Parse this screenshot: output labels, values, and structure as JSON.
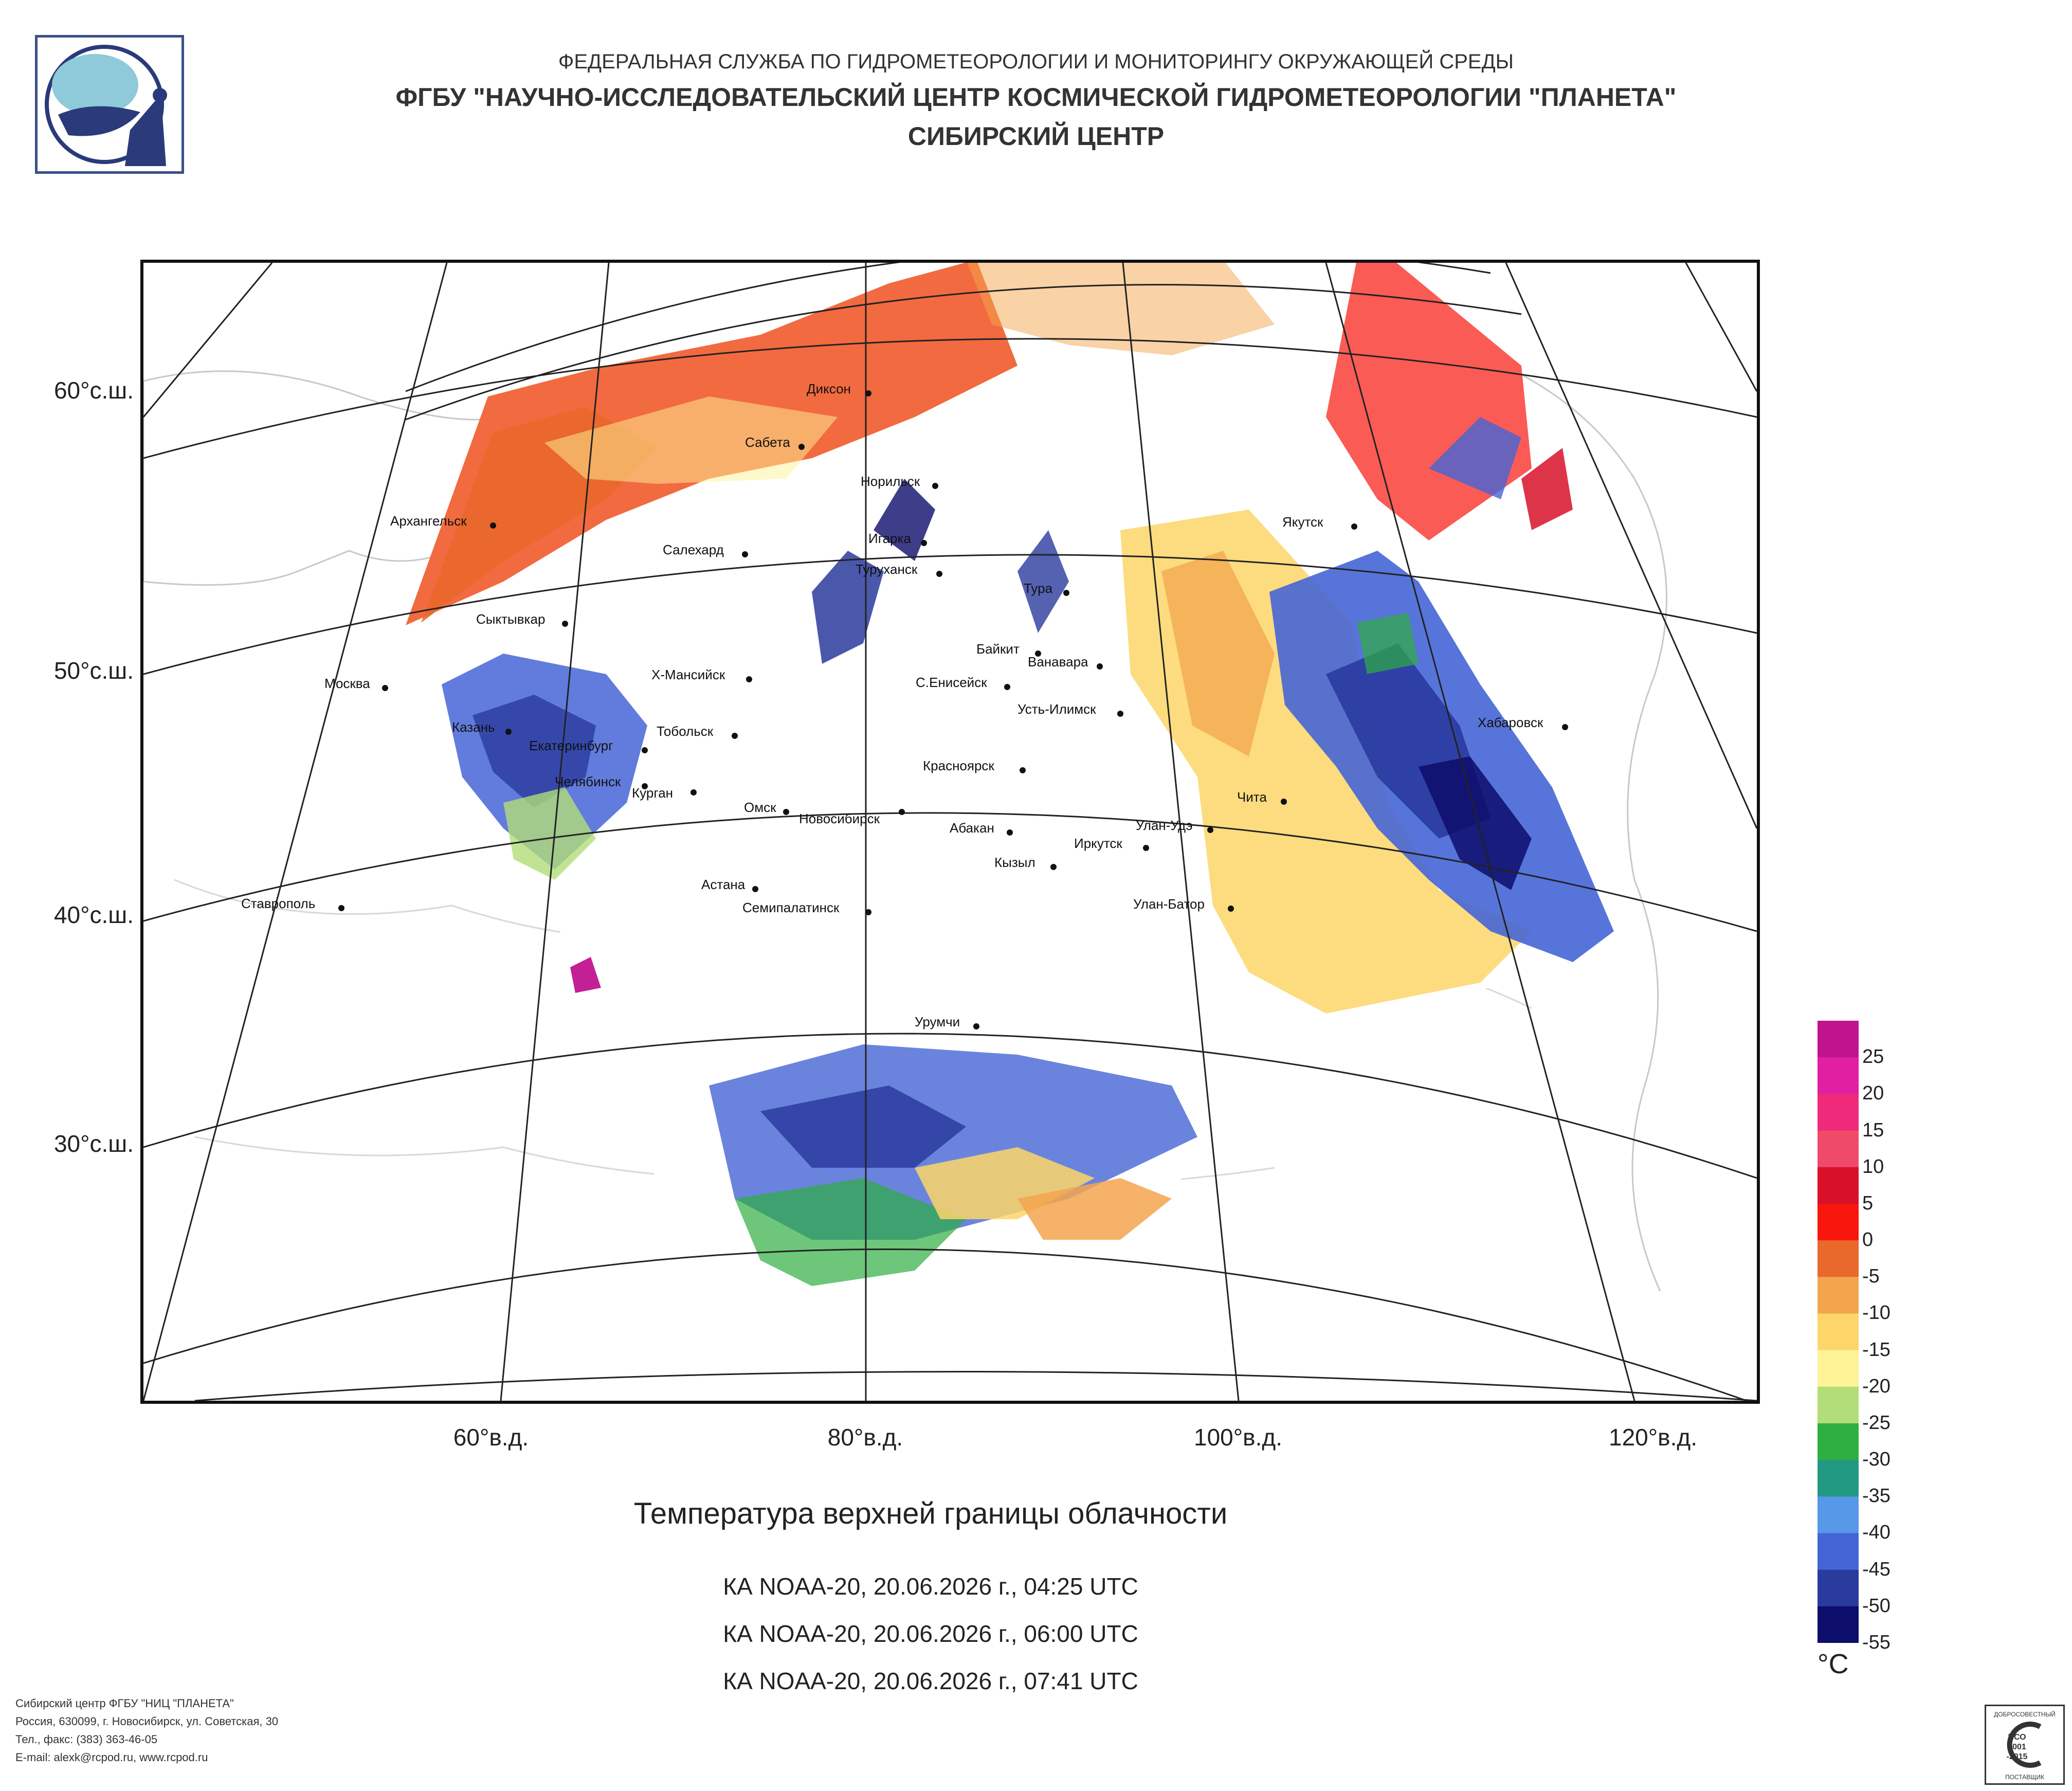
{
  "header": {
    "line1": "ФЕДЕРАЛЬНАЯ СЛУЖБА ПО ГИДРОМЕТЕОРОЛОГИИ И МОНИТОРИНГУ ОКРУЖАЮЩЕЙ СРЕДЫ",
    "line2": "ФГБУ \"НАУЧНО-ИССЛЕДОВАТЕЛЬСКИЙ ЦЕНТР КОСМИЧЕСКОЙ ГИДРОМЕТЕОРОЛОГИИ \"ПЛАНЕТА\"",
    "line3": "СИБИРСКИЙ ЦЕНТР"
  },
  "map": {
    "latitude_labels": [
      "60°с.ш.",
      "50°с.ш.",
      "40°с.ш.",
      "30°с.ш."
    ],
    "longitude_labels": [
      "60°в.д.",
      "80°в.д.",
      "100°в.д.",
      "120°в.д."
    ],
    "cities": [
      "Диксон",
      "Сабета",
      "Норильск",
      "Архангельск",
      "Салехард",
      "Игарка",
      "Туруханск",
      "Якутск",
      "Тура",
      "Сыктывкар",
      "Байкит",
      "Ванавара",
      "Москва",
      "Х-Мансийск",
      "С.Енисейск",
      "Усть-Илимск",
      "Хабаровск",
      "Казань",
      "Тобольск",
      "Екатеринбург",
      "Красноярск",
      "Челябинск",
      "Курган",
      "Чита",
      "Омск",
      "Новосибирск",
      "Абакан",
      "Улан-Удэ",
      "Иркутск",
      "Кызыл",
      "Астана",
      "Ставрополь",
      "Улан-Батор",
      "Семипалатинск",
      "Урумчи"
    ]
  },
  "caption": {
    "title": "Температура верхней границы облачности",
    "passes": [
      "КА NOAA-20, 20.06.2026 г., 04:25 UTC",
      "КА NOAA-20, 20.06.2026 г., 06:00 UTC",
      "КА NOAA-20, 20.06.2026 г., 07:41 UTC"
    ]
  },
  "legend": {
    "unit": "°C",
    "ticks": [
      "25",
      "20",
      "15",
      "10",
      "5",
      "0",
      "-5",
      "-10",
      "-15",
      "-20",
      "-25",
      "-30",
      "-35",
      "-40",
      "-45",
      "-50",
      "-55"
    ],
    "colors": [
      "#c0148f",
      "#e01fa2",
      "#ef2a7a",
      "#ef4a6a",
      "#d8102a",
      "#f8160d",
      "#e9682b",
      "#f3a54d",
      "#fcd668",
      "#fef397",
      "#b2dd78",
      "#2fae42",
      "#229a83",
      "#5798e8",
      "#4565d6",
      "#2a3b9e",
      "#0d0d6b"
    ]
  },
  "footer": {
    "line1": "Сибирский центр ФГБУ \"НИЦ \"ПЛАНЕТА\"",
    "line2": "Россия, 630099, г. Новосибирск, ул. Советская, 30",
    "line3": "Тел., факс: (383) 363-46-05",
    "line4": "E-mail: alexk@rcpod.ru, www.rcpod.ru"
  },
  "iso_badge": {
    "top": "ДОБРОСОВЕСТНЫЙ",
    "middle1": "ИСО",
    "middle2": "9001",
    "middle3": "-2015",
    "bottom": "ПОСТАВЩИК"
  }
}
